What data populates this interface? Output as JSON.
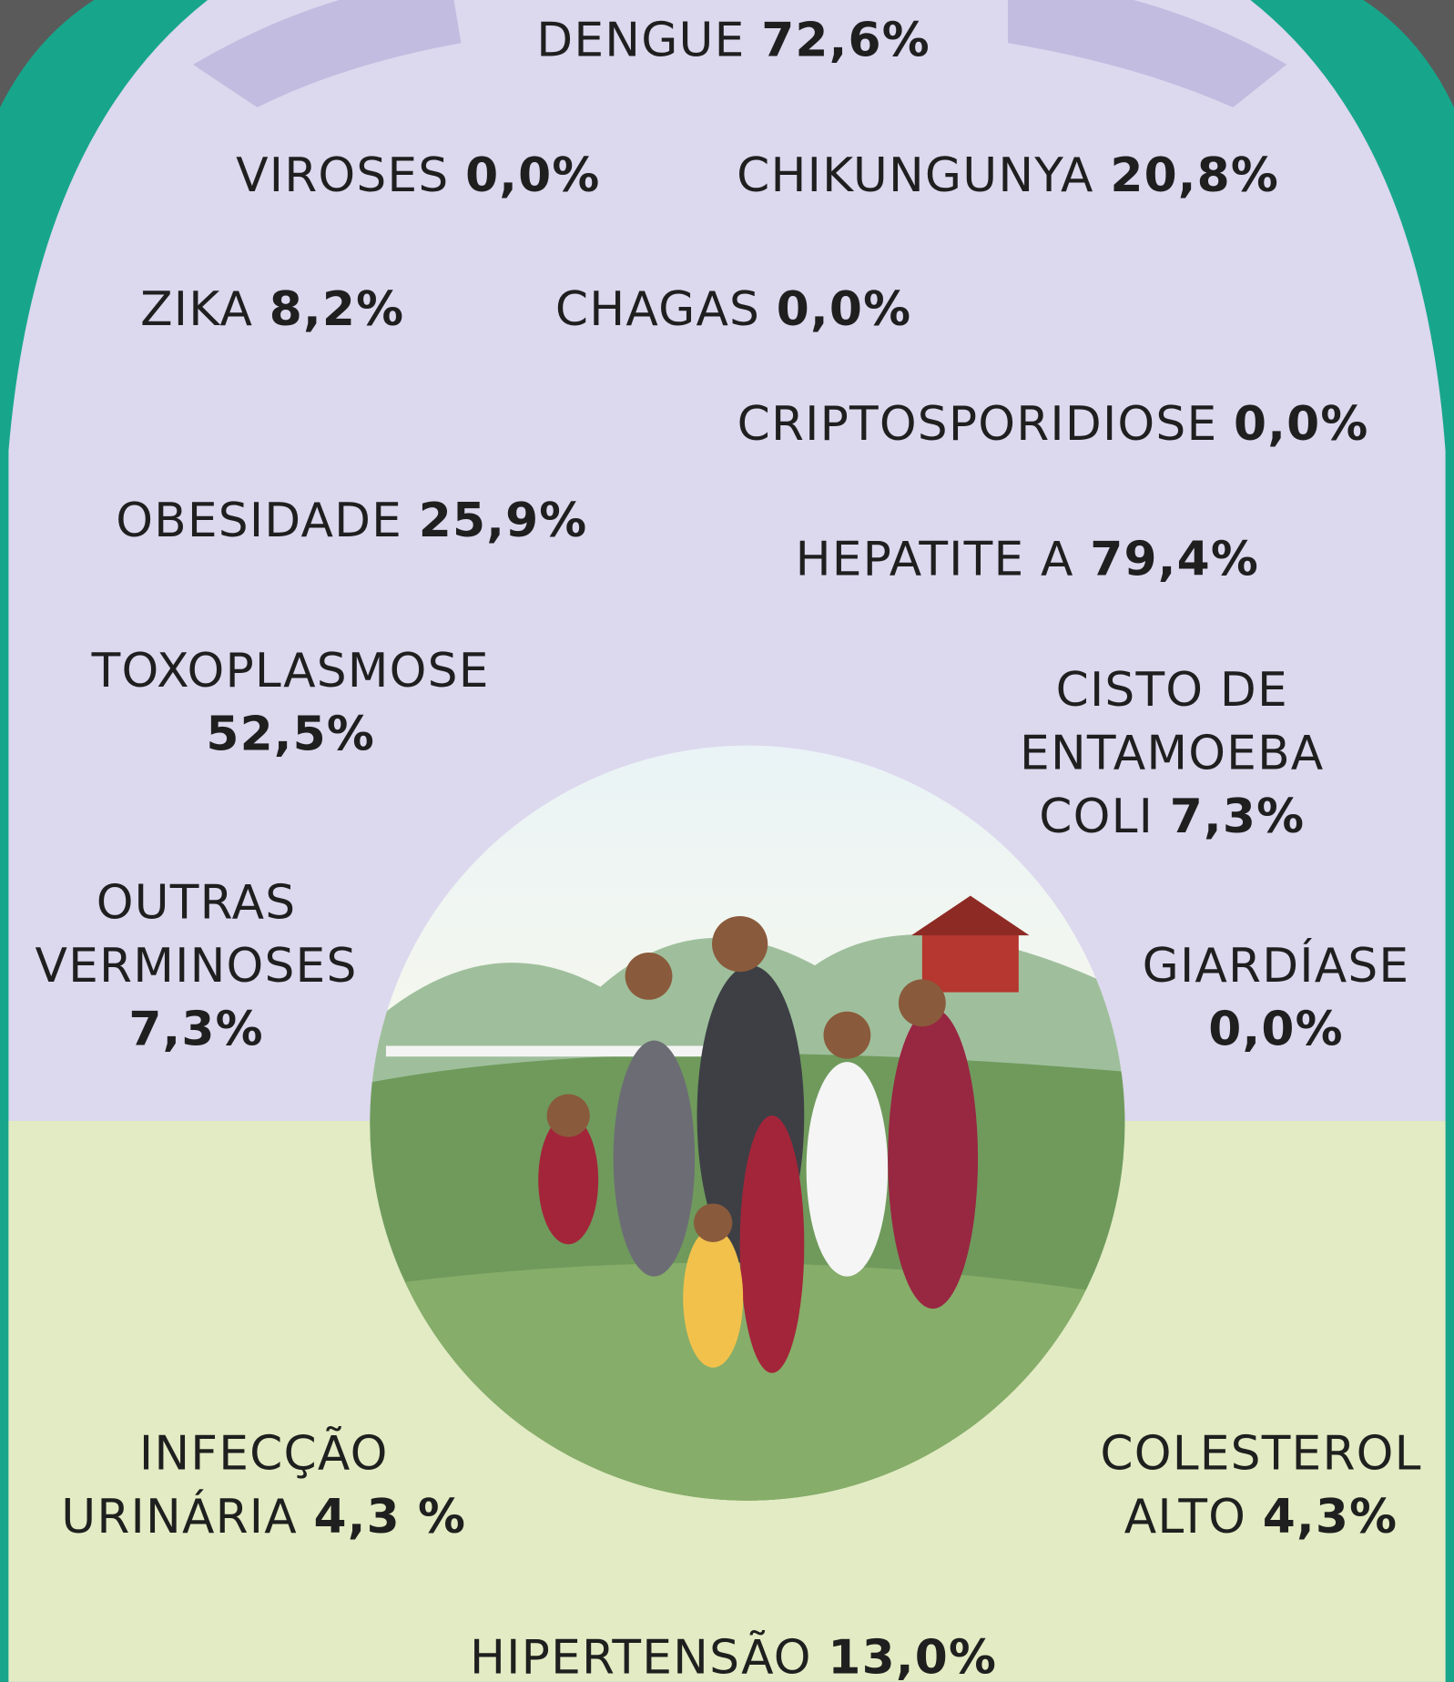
{
  "items": [
    {
      "name": [
        "DENGUE"
      ],
      "value": "72,6%"
    },
    {
      "name": [
        "VIROSES"
      ],
      "value": "0,0%"
    },
    {
      "name": [
        "CHIKUNGUNYA"
      ],
      "value": "20,8%"
    },
    {
      "name": [
        "ZIKA"
      ],
      "value": "8,2%"
    },
    {
      "name": [
        "CHAGAS"
      ],
      "value": "0,0%"
    },
    {
      "name": [
        "CRIPTOSPORIDIOSE"
      ],
      "value": "0,0%"
    },
    {
      "name": [
        "OBESIDADE"
      ],
      "value": "25,9%"
    },
    {
      "name": [
        "HEPATITE A"
      ],
      "value": "79,4%"
    },
    {
      "name": [
        "TOXOPLASMOSE"
      ],
      "value": "52,5%"
    },
    {
      "name": [
        "CISTO DE",
        "ENTAMOEBA",
        "COLI"
      ],
      "value": "7,3%"
    },
    {
      "name": [
        "OUTRAS",
        "VERMINOSES"
      ],
      "value": "7,3%"
    },
    {
      "name": [
        "GIARDÍASE"
      ],
      "value": "0,0%"
    },
    {
      "name": [
        "INFECÇÃO",
        "URINÁRIA"
      ],
      "value": "4,3 %"
    },
    {
      "name": [
        "COLESTEROL",
        "ALTO"
      ],
      "value": "4,3%"
    },
    {
      "name": [
        "HIPERTENSÃO"
      ],
      "value": "13,0%"
    }
  ]
}
